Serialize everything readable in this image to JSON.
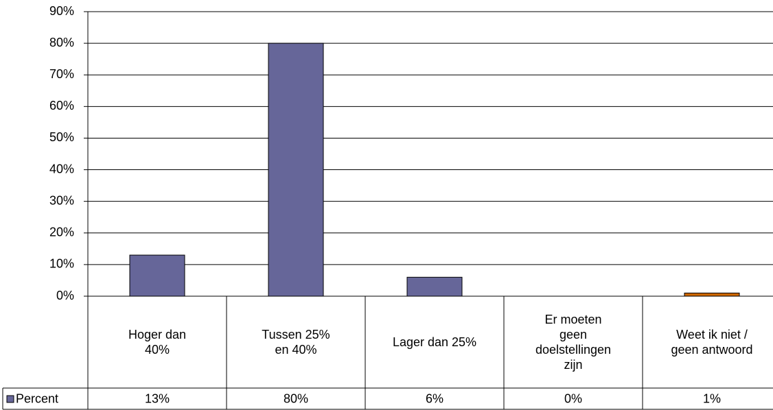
{
  "chart_data": {
    "type": "bar",
    "categories": [
      "Hoger dan\n40%",
      "Tussen 25%\nen 40%",
      "Lager dan 25%",
      "Er moeten\ngeen\ndoelstellingen\nzijn",
      "Weet ik niet /\ngeen antwoord"
    ],
    "series": [
      {
        "name": "Percent",
        "color": "#666699",
        "colors": [
          "#666699",
          "#666699",
          "#666699",
          "#666699",
          "#cc6600"
        ],
        "values": [
          13,
          80,
          6,
          0,
          1
        ],
        "value_labels": [
          "13%",
          "80%",
          "6%",
          "0%",
          "1%"
        ]
      }
    ],
    "ylim": [
      0,
      90
    ],
    "yticks": [
      {
        "value": 0,
        "label": "0%"
      },
      {
        "value": 10,
        "label": "10%"
      },
      {
        "value": 20,
        "label": "20%"
      },
      {
        "value": 30,
        "label": "30%"
      },
      {
        "value": 40,
        "label": "40%"
      },
      {
        "value": 50,
        "label": "50%"
      },
      {
        "value": 60,
        "label": "60%"
      },
      {
        "value": 70,
        "label": "70%"
      },
      {
        "value": 80,
        "label": "80%"
      },
      {
        "value": 90,
        "label": "90%"
      }
    ],
    "grid": true,
    "legend": "data-table"
  }
}
